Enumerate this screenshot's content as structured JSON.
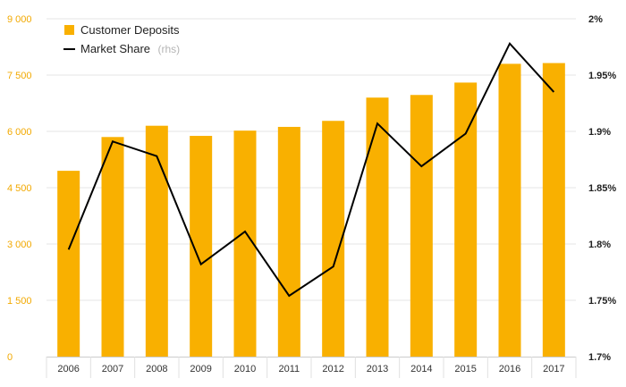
{
  "chart_data": {
    "type": "bar",
    "categories": [
      "2006",
      "2007",
      "2008",
      "2009",
      "2010",
      "2011",
      "2012",
      "2013",
      "2014",
      "2015",
      "2016",
      "2017"
    ],
    "series": [
      {
        "name": "Customer Deposits",
        "type": "bar",
        "axis": "left",
        "color": "#f9b000",
        "values": [
          4950,
          5850,
          6150,
          5880,
          6020,
          6120,
          6280,
          6900,
          6970,
          7300,
          7800,
          7820
        ]
      },
      {
        "name": "Market Share",
        "name_suffix": "(rhs)",
        "type": "line",
        "axis": "right",
        "color": "#000000",
        "values": [
          1.795,
          1.891,
          1.878,
          1.782,
          1.811,
          1.754,
          1.78,
          1.907,
          1.869,
          1.898,
          1.978,
          1.935
        ]
      }
    ],
    "y_left": {
      "ylim": [
        0,
        9000
      ],
      "ticks": [
        0,
        1500,
        3000,
        4500,
        6000,
        7500,
        9000
      ],
      "tick_labels": [
        "0",
        "1 500",
        "3 000",
        "4 500",
        "6 000",
        "7 500",
        "9 000"
      ]
    },
    "y_right": {
      "ylim": [
        1.7,
        2.0
      ],
      "ticks": [
        1.7,
        1.75,
        1.8,
        1.85,
        1.9,
        1.95,
        2.0
      ],
      "tick_labels": [
        "1.7%",
        "1.75%",
        "1.8%",
        "1.85%",
        "1.9%",
        "1.95%",
        "2%"
      ]
    },
    "grid": true,
    "legend_position": "top-left"
  }
}
